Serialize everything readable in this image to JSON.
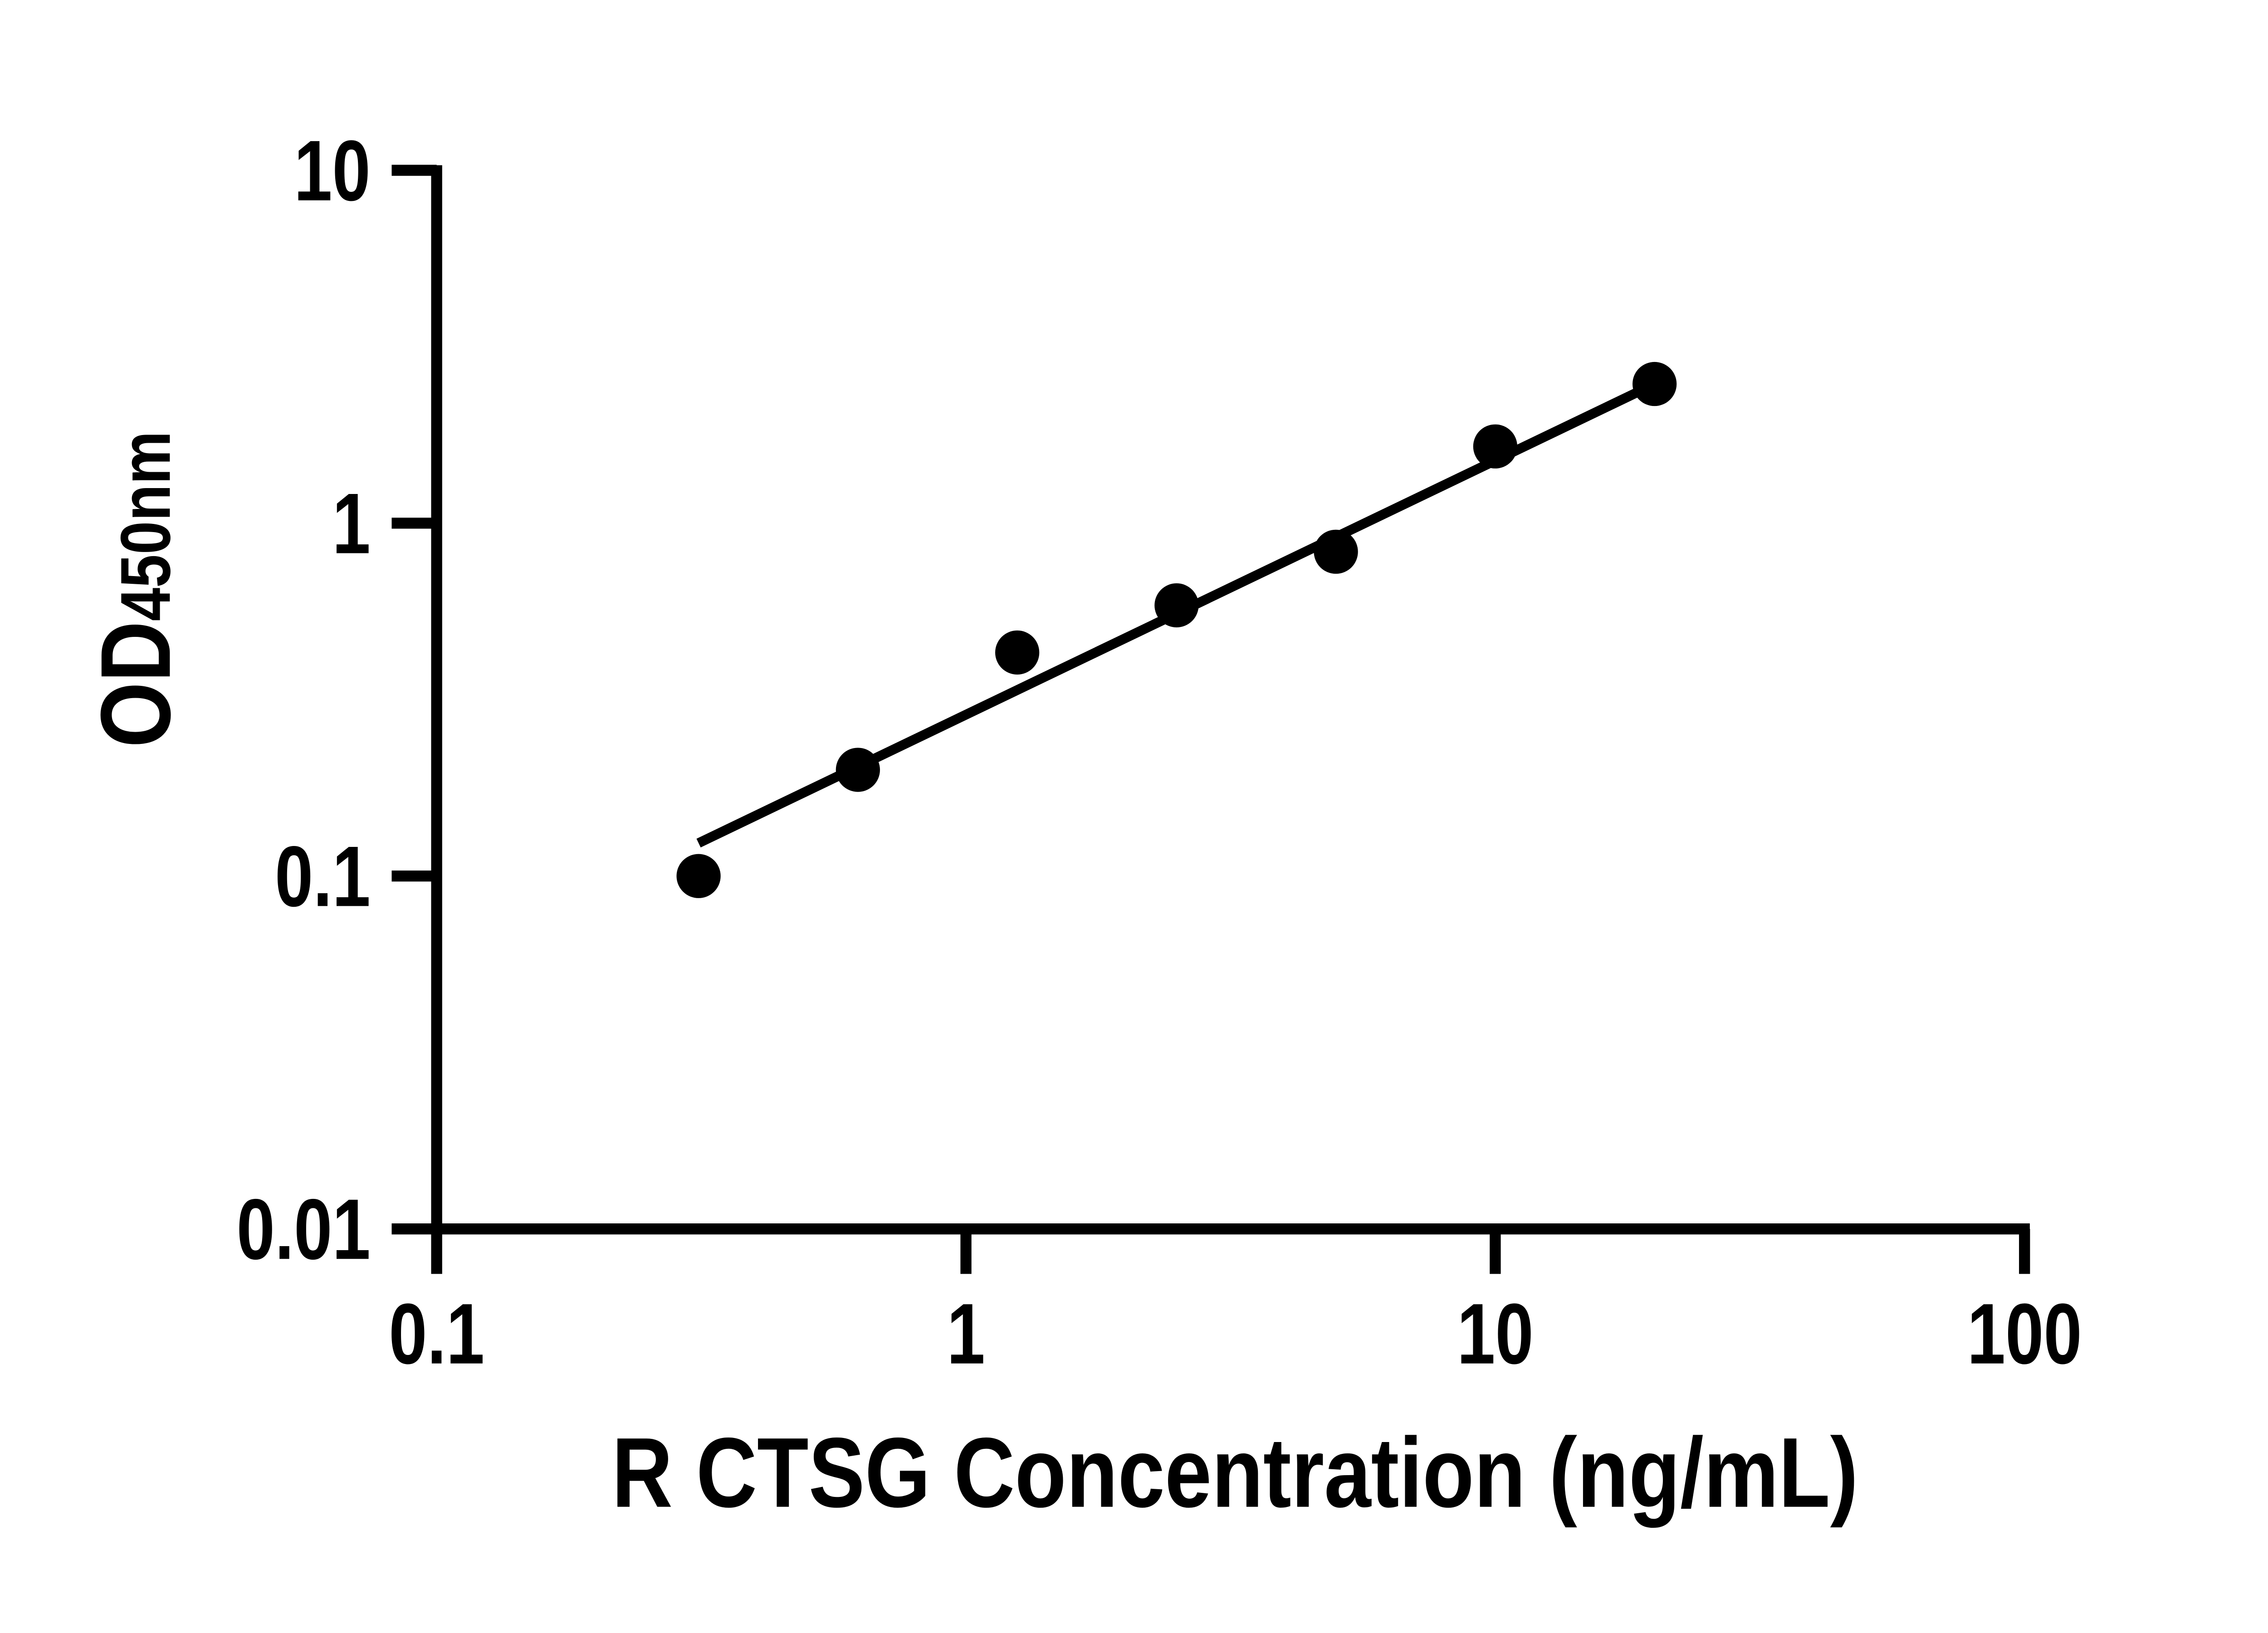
{
  "figure": {
    "background_color": "#ffffff",
    "ink_color": "#000000"
  },
  "chart_data": {
    "type": "scatter",
    "title": "",
    "xlabel": "R CTSG Concentration (ng/mL)",
    "ylabel": "OD",
    "ylabel_subscript": "450nm",
    "x_scale": "log",
    "y_scale": "log",
    "xlim": [
      0.1,
      100
    ],
    "ylim": [
      0.01,
      10
    ],
    "grid": false,
    "legend": false,
    "x_ticks": [
      {
        "value": 0.1,
        "label": "0.1"
      },
      {
        "value": 1,
        "label": "1"
      },
      {
        "value": 10,
        "label": "10"
      },
      {
        "value": 100,
        "label": "100"
      }
    ],
    "y_ticks": [
      {
        "value": 10,
        "label": "10"
      },
      {
        "value": 1,
        "label": "1"
      },
      {
        "value": 0.1,
        "label": "0.1"
      },
      {
        "value": 0.01,
        "label": "0.01"
      }
    ],
    "series": [
      {
        "name": "standard-curve-points",
        "marker": "circle",
        "color": "#000000",
        "points": [
          {
            "x": 0.3125,
            "y": 0.1
          },
          {
            "x": 0.625,
            "y": 0.2
          },
          {
            "x": 1.25,
            "y": 0.43
          },
          {
            "x": 2.5,
            "y": 0.585
          },
          {
            "x": 5,
            "y": 0.83
          },
          {
            "x": 10,
            "y": 1.65
          },
          {
            "x": 20,
            "y": 2.48
          }
        ]
      }
    ],
    "trend_line": {
      "name": "log-log-linear-fit",
      "x1": 0.3125,
      "y1": 0.124,
      "x2": 20,
      "y2": 2.48,
      "color": "#000000"
    }
  }
}
